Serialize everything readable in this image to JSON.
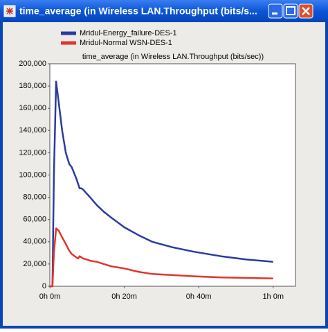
{
  "window": {
    "title": "time_average (in Wireless LAN.Throughput (bits/s..."
  },
  "chart_data": {
    "type": "line",
    "title": "time_average (in Wireless LAN.Throughput (bits/sec))",
    "x": [
      0,
      0.7,
      1.1,
      1.7,
      2.4,
      3.3,
      4.3,
      5.2,
      5.9,
      7.1,
      7.6,
      8.0,
      8.5,
      8.9,
      10.0,
      10.8,
      12.6,
      14.5,
      16.4,
      20,
      23.8,
      27.5,
      33,
      38.7,
      46,
      53,
      60
    ],
    "series": [
      {
        "name": "Mridul-Energy_failure-DES-1",
        "color": "#2a3aa0",
        "values": [
          0,
          0,
          100000,
          184000,
          165000,
          140000,
          120000,
          110000,
          107000,
          97000,
          92000,
          88000,
          88000,
          87000,
          83000,
          80000,
          73000,
          67000,
          62000,
          53000,
          46000,
          40000,
          35000,
          31000,
          27000,
          24000,
          22000
        ]
      },
      {
        "name": "Mridul-Normal WSN-DES-1",
        "color": "#e0362c",
        "values": [
          0,
          0,
          30000,
          52000,
          50000,
          44000,
          38000,
          32000,
          29000,
          26000,
          25000,
          27000,
          26000,
          25000,
          24000,
          23000,
          22000,
          20000,
          18000,
          16000,
          13000,
          11000,
          10000,
          9000,
          8000,
          7500,
          7000
        ]
      }
    ],
    "xlim": [
      0,
      66
    ],
    "xticks": [
      {
        "value": 0,
        "label": "0h 0m"
      },
      {
        "value": 20,
        "label": "0h 20m"
      },
      {
        "value": 40,
        "label": "0h 40m"
      },
      {
        "value": 60,
        "label": "1h 0m"
      }
    ],
    "ylim": [
      0,
      200000
    ],
    "yticks": [
      0,
      {
        "value": 20000,
        "label": "20,000"
      },
      {
        "value": 40000,
        "label": "40,000"
      },
      {
        "value": 60000,
        "label": "60,000"
      },
      {
        "value": 80000,
        "label": "80,000"
      },
      {
        "value": 100000,
        "label": "100,000"
      },
      {
        "value": 120000,
        "label": "120,000"
      },
      {
        "value": 140000,
        "label": "140,000"
      },
      {
        "value": 160000,
        "label": "160,000"
      },
      {
        "value": 180000,
        "label": "180,000"
      },
      {
        "value": 200000,
        "label": "200,000"
      }
    ],
    "grid": false
  }
}
